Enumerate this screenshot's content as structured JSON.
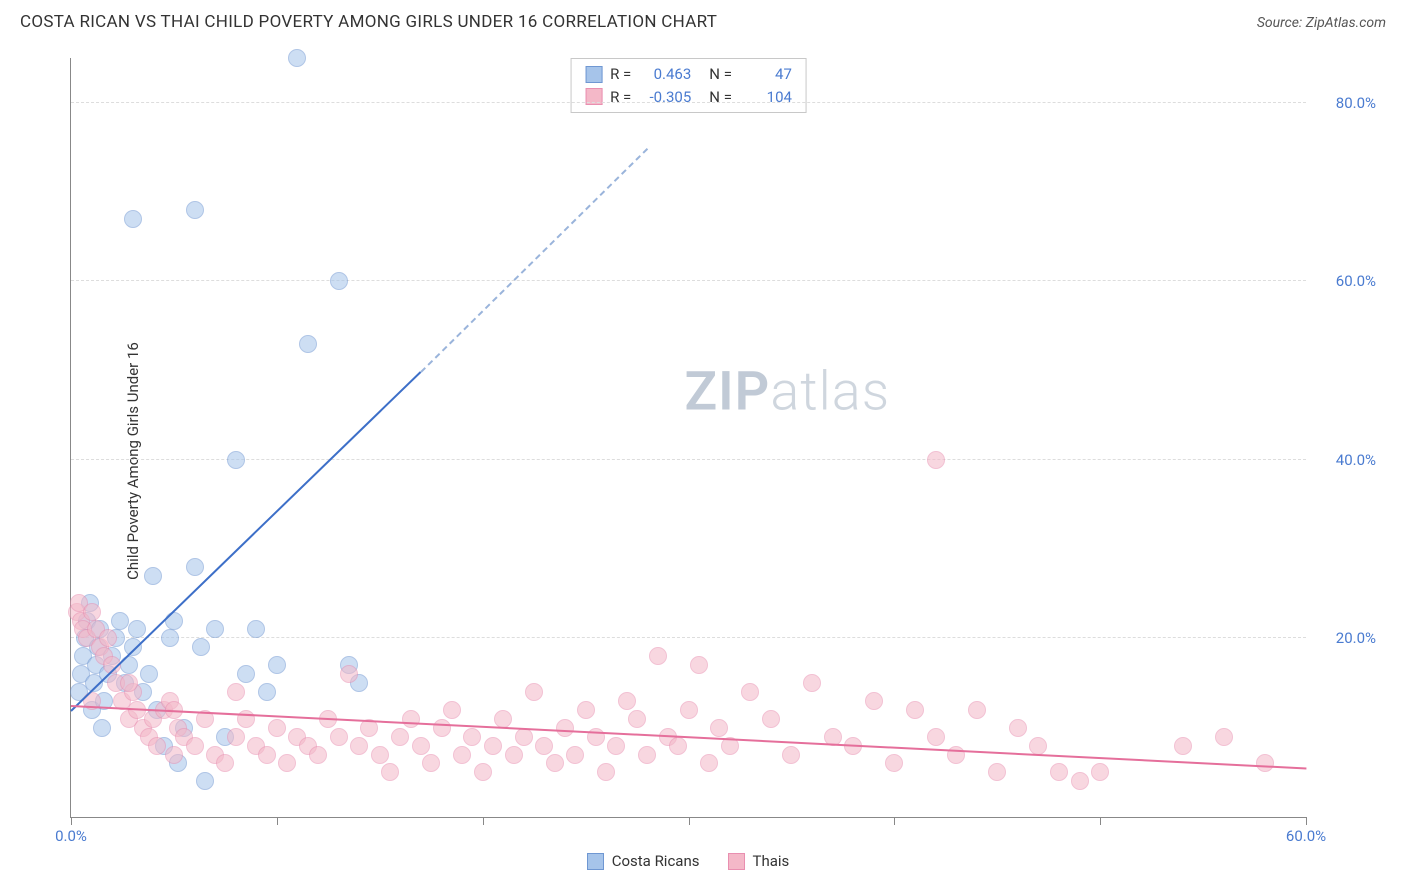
{
  "title": "COSTA RICAN VS THAI CHILD POVERTY AMONG GIRLS UNDER 16 CORRELATION CHART",
  "source_label": "Source: ZipAtlas.com",
  "ylabel": "Child Poverty Among Girls Under 16",
  "watermark_bold": "ZIP",
  "watermark_rest": "atlas",
  "chart": {
    "type": "scatter",
    "xlim": [
      0,
      60
    ],
    "ylim": [
      0,
      85
    ],
    "x_ticks": [
      0,
      10,
      20,
      30,
      40,
      50,
      60
    ],
    "x_tick_labels": [
      "0.0%",
      "",
      "",
      "",
      "",
      "",
      "60.0%"
    ],
    "y_ticks": [
      20,
      40,
      60,
      80
    ],
    "y_tick_labels": [
      "20.0%",
      "40.0%",
      "60.0%",
      "80.0%"
    ],
    "grid_color": "#dddddd",
    "axis_color": "#888888",
    "background_color": "#ffffff",
    "tick_label_color": "#4a7bd0",
    "marker_radius": 9,
    "marker_opacity": 0.55,
    "series": [
      {
        "name": "Costa Ricans",
        "fill": "#a6c4ea",
        "stroke": "#6f97d2",
        "R": "0.463",
        "N": "47",
        "trend": {
          "x1": 0,
          "y1": 12,
          "x2": 17,
          "y2": 50,
          "dash_from_x": 17,
          "dash_to_x": 28,
          "dash_to_y": 75
        },
        "points": [
          [
            0.4,
            14
          ],
          [
            0.5,
            16
          ],
          [
            0.6,
            18
          ],
          [
            0.7,
            20
          ],
          [
            0.8,
            22
          ],
          [
            0.9,
            24
          ],
          [
            1.0,
            12
          ],
          [
            1.1,
            15
          ],
          [
            1.2,
            17
          ],
          [
            1.3,
            19
          ],
          [
            1.4,
            21
          ],
          [
            1.5,
            10
          ],
          [
            1.6,
            13
          ],
          [
            1.8,
            16
          ],
          [
            2.0,
            18
          ],
          [
            2.2,
            20
          ],
          [
            2.4,
            22
          ],
          [
            2.6,
            15
          ],
          [
            2.8,
            17
          ],
          [
            3.0,
            19
          ],
          [
            3.2,
            21
          ],
          [
            3.5,
            14
          ],
          [
            3.8,
            16
          ],
          [
            4.0,
            27
          ],
          [
            4.2,
            12
          ],
          [
            4.5,
            8
          ],
          [
            4.8,
            20
          ],
          [
            5.0,
            22
          ],
          [
            5.2,
            6
          ],
          [
            5.5,
            10
          ],
          [
            6.0,
            28
          ],
          [
            6.3,
            19
          ],
          [
            6.5,
            4
          ],
          [
            7.0,
            21
          ],
          [
            7.5,
            9
          ],
          [
            8.0,
            40
          ],
          [
            8.5,
            16
          ],
          [
            9.0,
            21
          ],
          [
            9.5,
            14
          ],
          [
            10.0,
            17
          ],
          [
            3.0,
            67
          ],
          [
            6.0,
            68
          ],
          [
            11.0,
            85
          ],
          [
            11.5,
            53
          ],
          [
            13.0,
            60
          ],
          [
            13.5,
            17
          ],
          [
            14.0,
            15
          ]
        ]
      },
      {
        "name": "Thais",
        "fill": "#f4b8c8",
        "stroke": "#e98fb0",
        "R": "-0.305",
        "N": "104",
        "trend": {
          "x1": 0,
          "y1": 12.5,
          "x2": 60,
          "y2": 5.5
        },
        "points": [
          [
            0.3,
            23
          ],
          [
            0.4,
            24
          ],
          [
            0.5,
            22
          ],
          [
            0.6,
            21
          ],
          [
            0.8,
            20
          ],
          [
            1.0,
            23
          ],
          [
            1.2,
            21
          ],
          [
            1.4,
            19
          ],
          [
            1.6,
            18
          ],
          [
            1.8,
            20
          ],
          [
            2.0,
            17
          ],
          [
            2.2,
            15
          ],
          [
            2.5,
            13
          ],
          [
            2.8,
            11
          ],
          [
            3.0,
            14
          ],
          [
            3.2,
            12
          ],
          [
            3.5,
            10
          ],
          [
            3.8,
            9
          ],
          [
            4.0,
            11
          ],
          [
            4.2,
            8
          ],
          [
            4.5,
            12
          ],
          [
            4.8,
            13
          ],
          [
            5.0,
            7
          ],
          [
            5.2,
            10
          ],
          [
            5.5,
            9
          ],
          [
            6.0,
            8
          ],
          [
            6.5,
            11
          ],
          [
            7.0,
            7
          ],
          [
            7.5,
            6
          ],
          [
            8.0,
            9
          ],
          [
            8.5,
            11
          ],
          [
            9.0,
            8
          ],
          [
            9.5,
            7
          ],
          [
            10.0,
            10
          ],
          [
            10.5,
            6
          ],
          [
            11.0,
            9
          ],
          [
            11.5,
            8
          ],
          [
            12.0,
            7
          ],
          [
            12.5,
            11
          ],
          [
            13.0,
            9
          ],
          [
            13.5,
            16
          ],
          [
            14.0,
            8
          ],
          [
            14.5,
            10
          ],
          [
            15.0,
            7
          ],
          [
            15.5,
            5
          ],
          [
            16.0,
            9
          ],
          [
            16.5,
            11
          ],
          [
            17.0,
            8
          ],
          [
            17.5,
            6
          ],
          [
            18.0,
            10
          ],
          [
            18.5,
            12
          ],
          [
            19.0,
            7
          ],
          [
            19.5,
            9
          ],
          [
            20.0,
            5
          ],
          [
            20.5,
            8
          ],
          [
            21.0,
            11
          ],
          [
            21.5,
            7
          ],
          [
            22.0,
            9
          ],
          [
            22.5,
            14
          ],
          [
            23.0,
            8
          ],
          [
            23.5,
            6
          ],
          [
            24.0,
            10
          ],
          [
            24.5,
            7
          ],
          [
            25.0,
            12
          ],
          [
            25.5,
            9
          ],
          [
            26.0,
            5
          ],
          [
            26.5,
            8
          ],
          [
            27.0,
            13
          ],
          [
            27.5,
            11
          ],
          [
            28.0,
            7
          ],
          [
            28.5,
            18
          ],
          [
            29.0,
            9
          ],
          [
            29.5,
            8
          ],
          [
            30.0,
            12
          ],
          [
            30.5,
            17
          ],
          [
            31.0,
            6
          ],
          [
            31.5,
            10
          ],
          [
            32.0,
            8
          ],
          [
            33.0,
            14
          ],
          [
            34.0,
            11
          ],
          [
            35.0,
            7
          ],
          [
            36.0,
            15
          ],
          [
            37.0,
            9
          ],
          [
            38.0,
            8
          ],
          [
            39.0,
            13
          ],
          [
            40.0,
            6
          ],
          [
            41.0,
            12
          ],
          [
            42.0,
            9
          ],
          [
            43.0,
            7
          ],
          [
            44.0,
            12
          ],
          [
            45.0,
            5
          ],
          [
            46.0,
            10
          ],
          [
            47.0,
            8
          ],
          [
            48.0,
            5
          ],
          [
            49.0,
            4
          ],
          [
            50.0,
            5
          ],
          [
            42.0,
            40
          ],
          [
            54.0,
            8
          ],
          [
            56.0,
            9
          ],
          [
            58.0,
            6
          ],
          [
            1.0,
            13
          ],
          [
            2.8,
            15
          ],
          [
            5.0,
            12
          ],
          [
            8.0,
            14
          ]
        ]
      }
    ]
  },
  "stat_box": {
    "rows": [
      {
        "swatch_fill": "#a6c4ea",
        "swatch_stroke": "#6f97d2",
        "r_label": "R =",
        "r_val": "0.463",
        "n_label": "N =",
        "n_val": "47"
      },
      {
        "swatch_fill": "#f4b8c8",
        "swatch_stroke": "#e98fb0",
        "r_label": "R =",
        "r_val": "-0.305",
        "n_label": "N =",
        "n_val": "104"
      }
    ]
  },
  "legend": [
    {
      "fill": "#a6c4ea",
      "stroke": "#6f97d2",
      "label": "Costa Ricans"
    },
    {
      "fill": "#f4b8c8",
      "stroke": "#e98fb0",
      "label": "Thais"
    }
  ]
}
